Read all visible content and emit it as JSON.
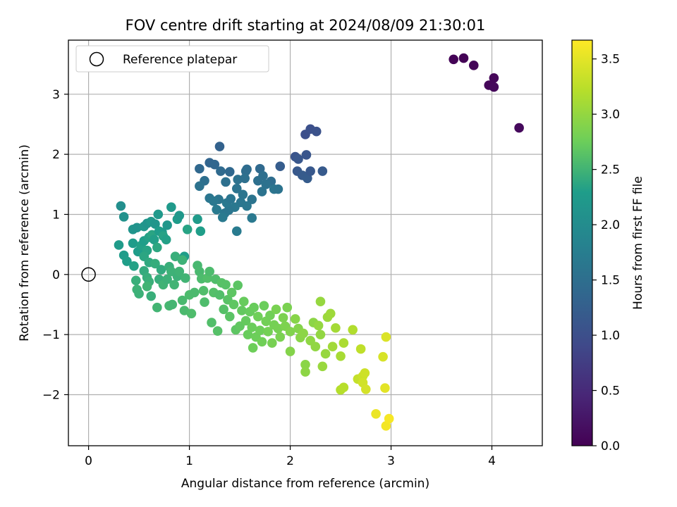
{
  "chart_data": {
    "type": "scatter",
    "title": "FOV centre drift starting at 2024/08/09 21:30:01",
    "xlabel": "Angular distance from reference (arcmin)",
    "ylabel": "Rotation from reference (arcmin)",
    "xlim": [
      -0.2,
      4.5
    ],
    "ylim": [
      -2.85,
      3.9
    ],
    "xticks": [
      0,
      1,
      2,
      3,
      4
    ],
    "xtick_labels": [
      "0",
      "1",
      "2",
      "3",
      "4"
    ],
    "yticks": [
      -2,
      -1,
      0,
      1,
      2,
      3
    ],
    "ytick_labels": [
      "−2",
      "−1",
      "0",
      "1",
      "2",
      "3"
    ],
    "grid": true,
    "legend": {
      "placement": "top-left",
      "entries": [
        "Reference platepar"
      ]
    },
    "reference_point": {
      "x": 0,
      "y": 0
    },
    "colorbar": {
      "label": "Hours from first FF file",
      "colormap": "viridis",
      "range": [
        0.0,
        3.67
      ],
      "ticks": [
        0.0,
        0.5,
        1.0,
        1.5,
        2.0,
        2.5,
        3.0,
        3.5
      ],
      "tick_labels": [
        "0.0",
        "0.5",
        "1.0",
        "1.5",
        "2.0",
        "2.5",
        "3.0",
        "3.5"
      ]
    },
    "points": [
      [
        3.62,
        3.58,
        0.02
      ],
      [
        3.72,
        3.6,
        0.03
      ],
      [
        3.82,
        3.48,
        0.05
      ],
      [
        3.97,
        3.15,
        0.07
      ],
      [
        4.02,
        3.12,
        0.08
      ],
      [
        4.02,
        3.27,
        0.06
      ],
      [
        4.27,
        2.44,
        0.1
      ],
      [
        2.15,
        2.33,
        1.0
      ],
      [
        2.2,
        2.42,
        1.02
      ],
      [
        2.26,
        2.38,
        1.05
      ],
      [
        2.16,
        1.99,
        1.1
      ],
      [
        2.05,
        1.96,
        1.08
      ],
      [
        2.08,
        1.92,
        1.12
      ],
      [
        2.07,
        1.72,
        1.15
      ],
      [
        2.12,
        1.65,
        1.18
      ],
      [
        2.17,
        1.6,
        1.2
      ],
      [
        2.2,
        1.72,
        1.14
      ],
      [
        2.32,
        1.72,
        1.17
      ],
      [
        1.9,
        1.8,
        1.22
      ],
      [
        1.3,
        2.13,
        1.3
      ],
      [
        1.2,
        1.86,
        1.35
      ],
      [
        1.25,
        1.83,
        1.38
      ],
      [
        1.1,
        1.76,
        1.4
      ],
      [
        1.31,
        1.72,
        1.42
      ],
      [
        1.4,
        1.71,
        1.4
      ],
      [
        1.57,
        1.75,
        1.45
      ],
      [
        1.56,
        1.72,
        1.47
      ],
      [
        1.7,
        1.76,
        1.43
      ],
      [
        1.73,
        1.64,
        1.5
      ],
      [
        1.68,
        1.56,
        1.52
      ],
      [
        1.81,
        1.55,
        1.48
      ],
      [
        1.76,
        1.5,
        1.55
      ],
      [
        1.72,
        1.38,
        1.58
      ],
      [
        1.84,
        1.42,
        1.6
      ],
      [
        1.88,
        1.42,
        1.57
      ],
      [
        1.15,
        1.56,
        1.5
      ],
      [
        1.1,
        1.47,
        1.55
      ],
      [
        1.36,
        1.54,
        1.52
      ],
      [
        1.48,
        1.58,
        1.55
      ],
      [
        1.55,
        1.6,
        1.52
      ],
      [
        1.47,
        1.43,
        1.57
      ],
      [
        1.53,
        1.33,
        1.6
      ],
      [
        1.51,
        1.2,
        1.62
      ],
      [
        1.45,
        1.12,
        1.65
      ],
      [
        1.39,
        1.07,
        1.63
      ],
      [
        1.35,
        1.02,
        1.62
      ],
      [
        1.29,
        1.25,
        1.6
      ],
      [
        1.2,
        1.27,
        1.63
      ],
      [
        1.24,
        1.22,
        1.66
      ],
      [
        1.33,
        0.95,
        1.68
      ],
      [
        1.37,
        1.19,
        1.66
      ],
      [
        1.62,
        1.25,
        1.59
      ],
      [
        1.57,
        1.14,
        1.64
      ],
      [
        1.62,
        0.94,
        1.67
      ],
      [
        1.47,
        0.72,
        1.7
      ],
      [
        1.27,
        1.08,
        1.69
      ],
      [
        1.41,
        1.26,
        1.61
      ],
      [
        0.32,
        1.14,
        2.05
      ],
      [
        0.35,
        0.96,
        2.1
      ],
      [
        0.44,
        0.75,
        2.15
      ],
      [
        0.48,
        0.78,
        2.12
      ],
      [
        0.55,
        0.8,
        2.18
      ],
      [
        0.58,
        0.85,
        2.14
      ],
      [
        0.62,
        0.88,
        2.2
      ],
      [
        0.66,
        0.84,
        2.16
      ],
      [
        0.69,
        1.0,
        2.22
      ],
      [
        0.73,
        0.7,
        2.25
      ],
      [
        0.78,
        0.82,
        2.19
      ],
      [
        0.82,
        1.12,
        2.24
      ],
      [
        0.88,
        0.92,
        2.27
      ],
      [
        0.9,
        0.98,
        2.21
      ],
      [
        1.08,
        0.92,
        2.26
      ],
      [
        1.11,
        0.72,
        2.3
      ],
      [
        0.98,
        0.75,
        2.35
      ],
      [
        0.95,
        0.3,
        2.3
      ],
      [
        0.3,
        0.49,
        2.25
      ],
      [
        0.35,
        0.32,
        2.28
      ],
      [
        0.38,
        0.22,
        2.3
      ],
      [
        0.44,
        0.52,
        2.27
      ],
      [
        0.45,
        0.14,
        2.33
      ],
      [
        0.49,
        0.38,
        2.29
      ],
      [
        0.52,
        0.48,
        2.32
      ],
      [
        0.55,
        0.56,
        2.3
      ],
      [
        0.58,
        0.4,
        2.35
      ],
      [
        0.6,
        0.62,
        2.33
      ],
      [
        0.63,
        0.66,
        2.36
      ],
      [
        0.65,
        0.58,
        2.31
      ],
      [
        0.7,
        0.72,
        2.29
      ],
      [
        0.68,
        0.45,
        2.38
      ],
      [
        0.74,
        0.64,
        2.34
      ],
      [
        0.77,
        0.58,
        2.32
      ],
      [
        0.55,
        0.3,
        2.37
      ],
      [
        0.6,
        0.2,
        2.4
      ],
      [
        0.55,
        0.06,
        2.42
      ],
      [
        0.58,
        -0.05,
        2.44
      ],
      [
        0.6,
        -0.12,
        2.46
      ],
      [
        0.47,
        -0.1,
        2.45
      ],
      [
        0.48,
        -0.25,
        2.48
      ],
      [
        0.5,
        -0.32,
        2.47
      ],
      [
        0.58,
        -0.2,
        2.5
      ],
      [
        0.62,
        -0.36,
        2.45
      ],
      [
        0.66,
        0.18,
        2.43
      ],
      [
        0.7,
        -0.08,
        2.44
      ],
      [
        0.72,
        0.08,
        2.41
      ],
      [
        0.74,
        -0.17,
        2.49
      ],
      [
        0.78,
        -0.08,
        2.47
      ],
      [
        0.8,
        0.13,
        2.45
      ],
      [
        0.82,
        0.05,
        2.48
      ],
      [
        0.85,
        -0.17,
        2.5
      ],
      [
        0.86,
        0.3,
        2.45
      ],
      [
        0.88,
        -0.03,
        2.47
      ],
      [
        0.9,
        0.05,
        2.49
      ],
      [
        0.93,
        0.24,
        2.48
      ],
      [
        0.96,
        -0.06,
        2.5
      ],
      [
        0.68,
        -0.55,
        2.51
      ],
      [
        0.8,
        -0.52,
        2.53
      ],
      [
        0.83,
        -0.5,
        2.52
      ],
      [
        0.93,
        -0.43,
        2.55
      ],
      [
        0.95,
        -0.6,
        2.56
      ],
      [
        1.0,
        -0.34,
        2.57
      ],
      [
        1.02,
        -0.65,
        2.58
      ],
      [
        1.05,
        -0.3,
        2.56
      ],
      [
        1.08,
        0.15,
        2.54
      ],
      [
        1.1,
        0.05,
        2.55
      ],
      [
        1.12,
        -0.07,
        2.57
      ],
      [
        1.14,
        -0.27,
        2.59
      ],
      [
        1.15,
        -0.46,
        2.58
      ],
      [
        1.18,
        -0.06,
        2.6
      ],
      [
        1.2,
        0.05,
        2.57
      ],
      [
        1.22,
        -0.8,
        2.6
      ],
      [
        1.24,
        -0.3,
        2.61
      ],
      [
        1.26,
        -0.08,
        2.59
      ],
      [
        1.28,
        -0.94,
        2.62
      ],
      [
        1.3,
        -0.34,
        2.6
      ],
      [
        1.32,
        -0.14,
        2.63
      ],
      [
        1.34,
        -0.58,
        2.62
      ],
      [
        1.36,
        -0.17,
        2.63
      ],
      [
        1.38,
        -0.42,
        2.64
      ],
      [
        1.4,
        -0.7,
        2.65
      ],
      [
        1.42,
        -0.3,
        2.67
      ],
      [
        1.44,
        -0.5,
        2.68
      ],
      [
        1.46,
        -0.92,
        2.67
      ],
      [
        1.48,
        -0.18,
        2.66
      ],
      [
        1.5,
        -0.86,
        2.69
      ],
      [
        1.52,
        -0.6,
        2.7
      ],
      [
        1.54,
        -0.45,
        2.72
      ],
      [
        1.56,
        -0.77,
        2.71
      ],
      [
        1.58,
        -1.0,
        2.73
      ],
      [
        1.6,
        -0.62,
        2.72
      ],
      [
        1.62,
        -0.88,
        2.74
      ],
      [
        1.63,
        -1.22,
        2.76
      ],
      [
        1.64,
        -0.55,
        2.73
      ],
      [
        1.66,
        -1.04,
        2.75
      ],
      [
        1.68,
        -0.7,
        2.77
      ],
      [
        1.7,
        -0.93,
        2.76
      ],
      [
        1.72,
        -1.12,
        2.78
      ],
      [
        1.74,
        -0.52,
        2.74
      ],
      [
        1.76,
        -0.78,
        2.79
      ],
      [
        1.78,
        -0.95,
        2.8
      ],
      [
        1.8,
        -0.68,
        2.78
      ],
      [
        1.82,
        -1.14,
        2.82
      ],
      [
        1.84,
        -0.84,
        2.81
      ],
      [
        1.86,
        -0.58,
        2.83
      ],
      [
        1.88,
        -0.9,
        2.82
      ],
      [
        1.9,
        -1.04,
        2.84
      ],
      [
        1.93,
        -0.72,
        2.85
      ],
      [
        1.95,
        -0.86,
        2.86
      ],
      [
        1.97,
        -0.55,
        2.84
      ],
      [
        2.0,
        -0.95,
        2.88
      ],
      [
        2.0,
        -1.28,
        2.9
      ],
      [
        2.05,
        -0.74,
        2.92
      ],
      [
        2.08,
        -0.9,
        2.9
      ],
      [
        2.1,
        -1.05,
        2.93
      ],
      [
        2.13,
        -0.98,
        2.95
      ],
      [
        2.15,
        -1.5,
        2.94
      ],
      [
        2.15,
        -1.62,
        2.96
      ],
      [
        2.2,
        -1.1,
        2.97
      ],
      [
        2.23,
        -0.8,
        2.95
      ],
      [
        2.25,
        -1.2,
        2.98
      ],
      [
        2.28,
        -0.85,
        3.0
      ],
      [
        2.3,
        -1.0,
        2.99
      ],
      [
        2.3,
        -0.45,
        3.01
      ],
      [
        2.32,
        -1.53,
        3.03
      ],
      [
        2.35,
        -1.32,
        3.02
      ],
      [
        2.37,
        -0.71,
        3.05
      ],
      [
        2.4,
        -0.65,
        3.06
      ],
      [
        2.42,
        -1.2,
        3.08
      ],
      [
        2.45,
        -0.89,
        3.1
      ],
      [
        2.5,
        -1.36,
        3.12
      ],
      [
        2.5,
        -1.92,
        3.2
      ],
      [
        2.53,
        -1.88,
        3.22
      ],
      [
        2.53,
        -1.14,
        3.14
      ],
      [
        2.62,
        -0.92,
        3.18
      ],
      [
        2.67,
        -1.74,
        3.3
      ],
      [
        2.7,
        -1.24,
        3.27
      ],
      [
        2.72,
        -1.69,
        3.34
      ],
      [
        2.72,
        -1.8,
        3.38
      ],
      [
        2.74,
        -1.64,
        3.36
      ],
      [
        2.75,
        -1.91,
        3.4
      ],
      [
        2.85,
        -2.32,
        3.55
      ],
      [
        2.92,
        -1.37,
        3.42
      ],
      [
        2.94,
        -1.89,
        3.5
      ],
      [
        2.95,
        -1.04,
        3.45
      ],
      [
        2.95,
        -2.52,
        3.6
      ],
      [
        2.98,
        -2.4,
        3.62
      ]
    ]
  }
}
